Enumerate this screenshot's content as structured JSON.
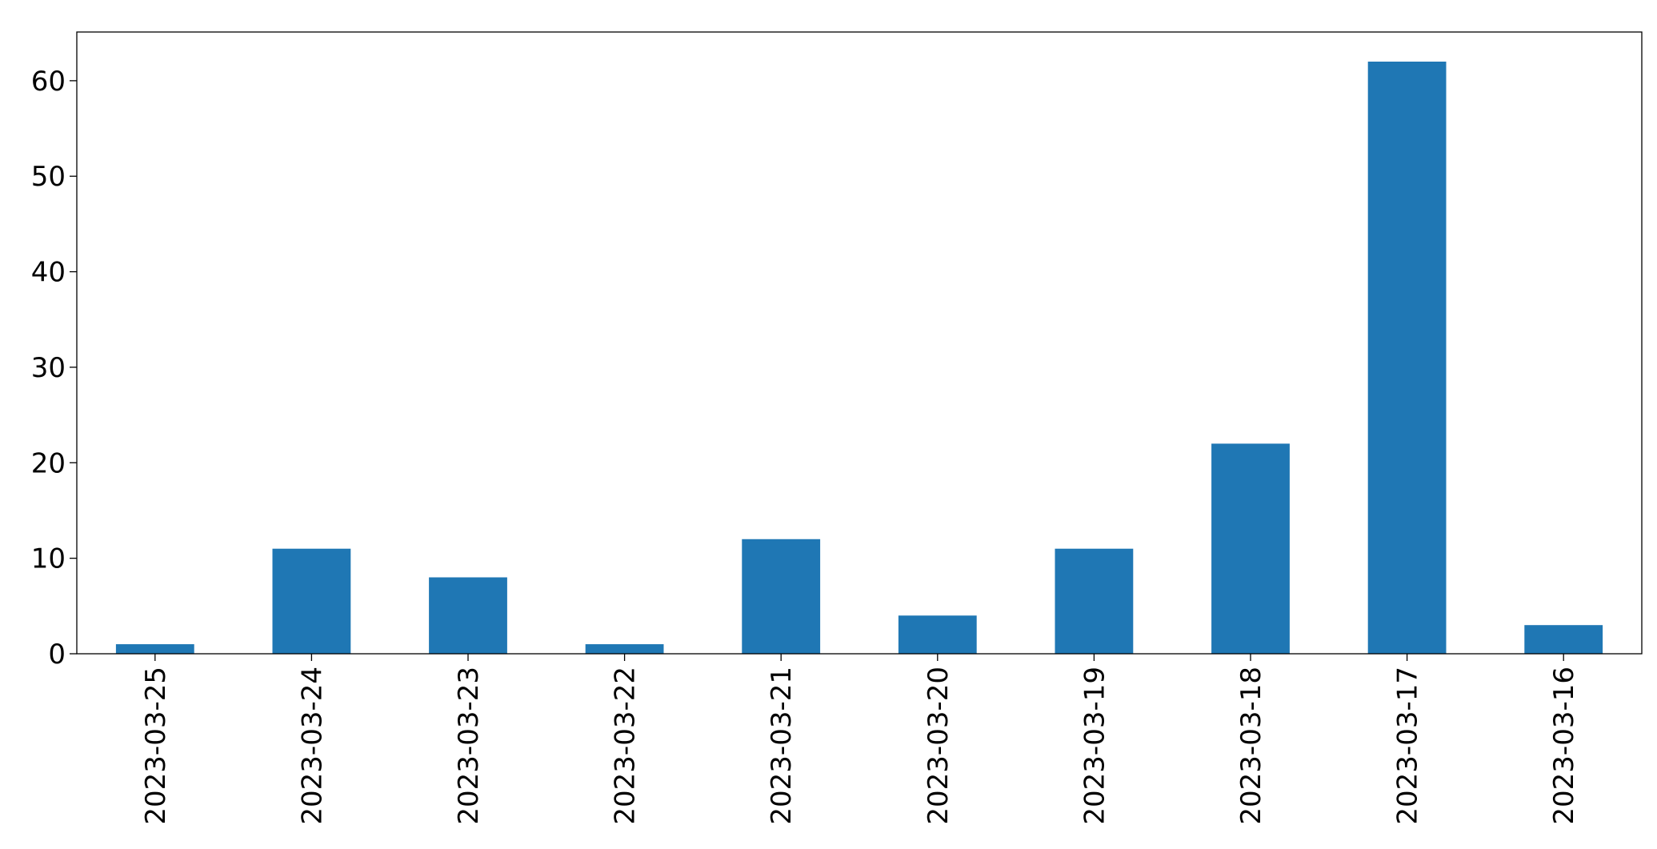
{
  "chart_data": {
    "type": "bar",
    "categories": [
      "2023-03-25",
      "2023-03-24",
      "2023-03-23",
      "2023-03-22",
      "2023-03-21",
      "2023-03-20",
      "2023-03-19",
      "2023-03-18",
      "2023-03-17",
      "2023-03-16"
    ],
    "values": [
      1,
      11,
      8,
      1,
      12,
      4,
      11,
      22,
      62,
      3
    ],
    "color": "#1f77b4",
    "ylim": [
      0,
      65.1
    ],
    "yticks": [
      0,
      10,
      20,
      30,
      40,
      50,
      60
    ],
    "grid": false
  }
}
